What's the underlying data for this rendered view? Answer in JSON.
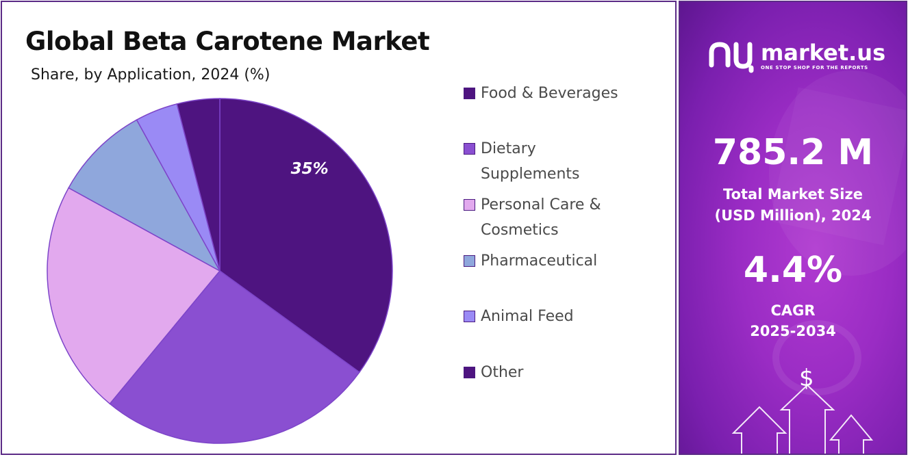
{
  "chart_data": {
    "type": "pie",
    "title": "Global Beta Carotene Market",
    "subtitle": "Share, by Application, 2024 (%)",
    "categories": [
      "Food & Beverages",
      "Dietary Supplements",
      "Personal Care & Cosmetics",
      "Pharmaceutical",
      "Animal Feed",
      "Other"
    ],
    "values": [
      35,
      26,
      22,
      9,
      4,
      4
    ],
    "colors": [
      "#4e1480",
      "#8a4fd1",
      "#e2a9ee",
      "#8fa7dc",
      "#9a8af5",
      "#4e1480"
    ],
    "data_labels": [
      "35%",
      "",
      "",
      "",
      "",
      ""
    ],
    "legend_position": "right"
  },
  "legend": {
    "items": [
      {
        "label": "Food & Beverages"
      },
      {
        "label": "Dietary Supplements"
      },
      {
        "label": "Personal Care & Cosmetics"
      },
      {
        "label": "Pharmaceutical"
      },
      {
        "label": "Animal Feed"
      },
      {
        "label": "Other"
      }
    ]
  },
  "sidebar": {
    "logo_text": "market.us",
    "logo_tagline": "ONE STOP SHOP FOR THE REPORTS",
    "market_size_value": "785.2 M",
    "market_size_label_line1": "Total Market Size",
    "market_size_label_line2": "(USD Million), 2024",
    "cagr_value": "4.4%",
    "cagr_label_line1": "CAGR",
    "cagr_label_line2": "2025-2034",
    "dollar_symbol": "$",
    "icons": [
      "market-us-logo-icon",
      "dollar-icon",
      "arrow-up-icon"
    ]
  }
}
